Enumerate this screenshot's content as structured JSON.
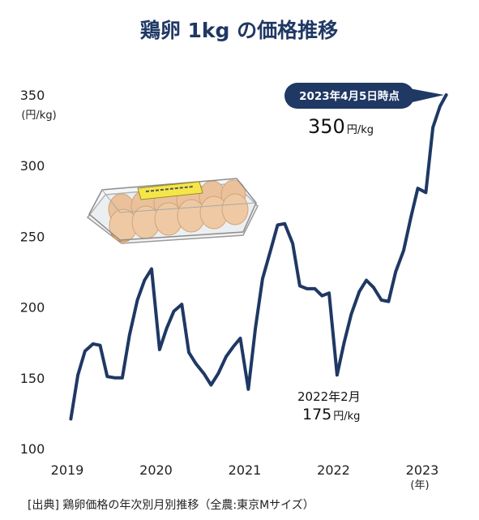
{
  "chart_data": {
    "type": "line",
    "title": "鶏卵 1kg の価格推移",
    "y_unit": "(円/kg)",
    "x_unit": "(年)",
    "ylim": [
      100,
      350
    ],
    "y_ticks": [
      100,
      150,
      200,
      250,
      300,
      350
    ],
    "x_ticks": [
      {
        "label": "2019",
        "x": 2019.0
      },
      {
        "label": "2020",
        "x": 2020.0
      },
      {
        "label": "2021",
        "x": 2021.0
      },
      {
        "label": "2022",
        "x": 2022.0
      },
      {
        "label": "2023",
        "x": 2023.0
      }
    ],
    "grid": false,
    "legend": "none",
    "line_color": "#1f3864",
    "series": [
      {
        "points": [
          [
            2019.04,
            121
          ],
          [
            2019.12,
            152
          ],
          [
            2019.2,
            169
          ],
          [
            2019.29,
            174
          ],
          [
            2019.37,
            173
          ],
          [
            2019.45,
            151
          ],
          [
            2019.54,
            150
          ],
          [
            2019.62,
            150
          ],
          [
            2019.7,
            180
          ],
          [
            2019.79,
            205
          ],
          [
            2019.87,
            219
          ],
          [
            2019.95,
            227
          ],
          [
            2020.04,
            170
          ],
          [
            2020.12,
            185
          ],
          [
            2020.2,
            197
          ],
          [
            2020.29,
            202
          ],
          [
            2020.37,
            168
          ],
          [
            2020.45,
            160
          ],
          [
            2020.54,
            153
          ],
          [
            2020.62,
            145
          ],
          [
            2020.7,
            153
          ],
          [
            2020.79,
            165
          ],
          [
            2020.87,
            172
          ],
          [
            2020.95,
            178
          ],
          [
            2021.04,
            142
          ],
          [
            2021.12,
            185
          ],
          [
            2021.2,
            220
          ],
          [
            2021.29,
            240
          ],
          [
            2021.37,
            258
          ],
          [
            2021.45,
            259
          ],
          [
            2021.54,
            245
          ],
          [
            2021.62,
            215
          ],
          [
            2021.7,
            213
          ],
          [
            2021.79,
            213
          ],
          [
            2021.87,
            208
          ],
          [
            2021.95,
            210
          ],
          [
            2022.04,
            152
          ],
          [
            2022.12,
            175
          ],
          [
            2022.2,
            195
          ],
          [
            2022.29,
            211
          ],
          [
            2022.37,
            219
          ],
          [
            2022.45,
            214
          ],
          [
            2022.54,
            205
          ],
          [
            2022.62,
            204
          ],
          [
            2022.7,
            225
          ],
          [
            2022.79,
            240
          ],
          [
            2022.87,
            263
          ],
          [
            2022.95,
            284
          ],
          [
            2023.04,
            281
          ],
          [
            2023.12,
            327
          ],
          [
            2023.2,
            342
          ],
          [
            2023.27,
            350
          ]
        ]
      }
    ],
    "annotations": {
      "callout": {
        "label": "2023年4月5日時点",
        "value": "350",
        "unit": "円/kg",
        "color": "#1f3864"
      },
      "low_point": {
        "label": "2022年2月",
        "value": "175",
        "unit": "円/kg"
      }
    },
    "source": "[出典] 鶏卵価格の年次別月別推移（全農:東京Mサイズ）"
  }
}
